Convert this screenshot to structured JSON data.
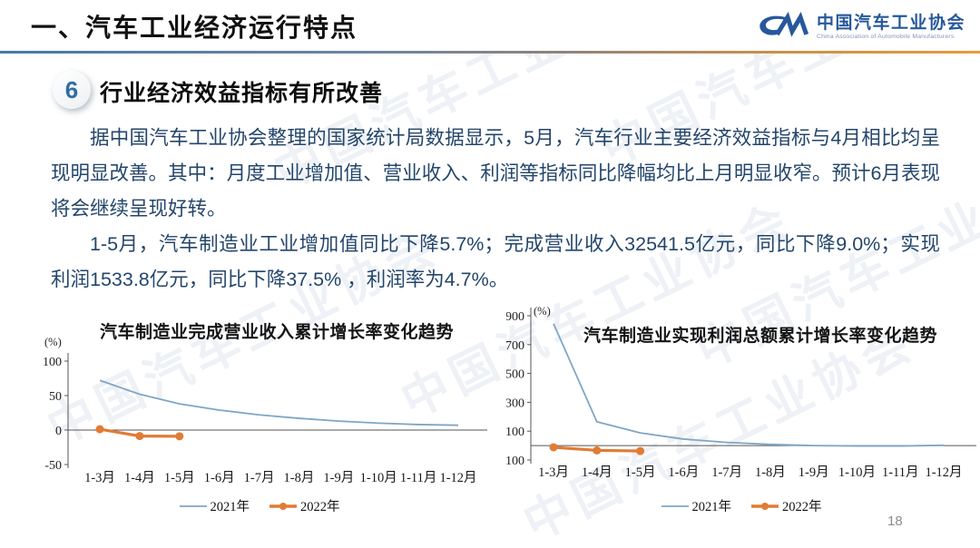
{
  "slide": {
    "header_title": "一、汽车工业经济运行特点",
    "logo": {
      "name_cn": "中国汽车工业协会",
      "name_en": "China Association of Automobile Manufacturers"
    },
    "section": {
      "number": "6",
      "title": "行业经济效益指标有所改善"
    },
    "paragraphs": [
      "据中国汽车工业协会整理的国家统计局数据显示，5月，汽车行业主要经济效益指标与4月相比均呈现明显改善。其中：月度工业增加值、营业收入、利润等指标同比降幅均比上月明显收窄。预计6月表现将会继续呈现好转。",
      "1-5月，汽车制造业工业增加值同比下降5.7%；完成营业收入32541.5亿元，同比下降9.0%；实现利润1533.8亿元，同比下降37.5% ，利润率为4.7%。"
    ],
    "watermark": "中国汽车工业协会",
    "page_number": "18"
  },
  "colors": {
    "line_2021_blue": "#7ea6c6",
    "line_2022_orange": "#e07c36",
    "body_text_navy": "#24466b",
    "logo_blue": "#27589b",
    "divider_blue": "#4678ab",
    "divider_orange": "#e89a3e"
  },
  "chart_data": [
    {
      "type": "line",
      "title": "汽车制造业完成营业收入累计增长率变化趋势",
      "y_unit": "(%)",
      "categories": [
        "1-3月",
        "1-4月",
        "1-5月",
        "1-6月",
        "1-7月",
        "1-8月",
        "1-9月",
        "1-10月",
        "1-11月",
        "1-12月"
      ],
      "yticks": [
        100,
        50,
        0,
        -50
      ],
      "ylim": [
        -50,
        100
      ],
      "grid": false,
      "legend_position": "bottom",
      "series": [
        {
          "name": "2021年",
          "color": "#7ea6c6",
          "marker": false,
          "values": [
            72,
            52,
            38,
            29,
            22,
            17,
            13,
            10,
            8,
            7
          ]
        },
        {
          "name": "2022年",
          "color": "#e07c36",
          "marker": true,
          "values": [
            1.2,
            -8.7,
            -9.0
          ]
        }
      ]
    },
    {
      "type": "line",
      "title": "汽车制造业实现利润总额累计增长率变化趋势",
      "y_unit": "(%)",
      "categories": [
        "1-3月",
        "1-4月",
        "1-5月",
        "1-6月",
        "1-7月",
        "1-8月",
        "1-9月",
        "1-10月",
        "1-11月",
        "1-12月"
      ],
      "yticks": [
        900,
        700,
        500,
        300,
        100,
        -100
      ],
      "ylim": [
        -100,
        900
      ],
      "grid": false,
      "legend_position": "bottom",
      "series": [
        {
          "name": "2021年",
          "color": "#7ea6c6",
          "marker": false,
          "values": [
            845,
            165,
            88,
            45,
            22,
            8,
            0,
            -3,
            -3,
            2
          ]
        },
        {
          "name": "2022年",
          "color": "#e07c36",
          "marker": true,
          "values": [
            -11.9,
            -33.4,
            -37.5
          ]
        }
      ]
    }
  ]
}
